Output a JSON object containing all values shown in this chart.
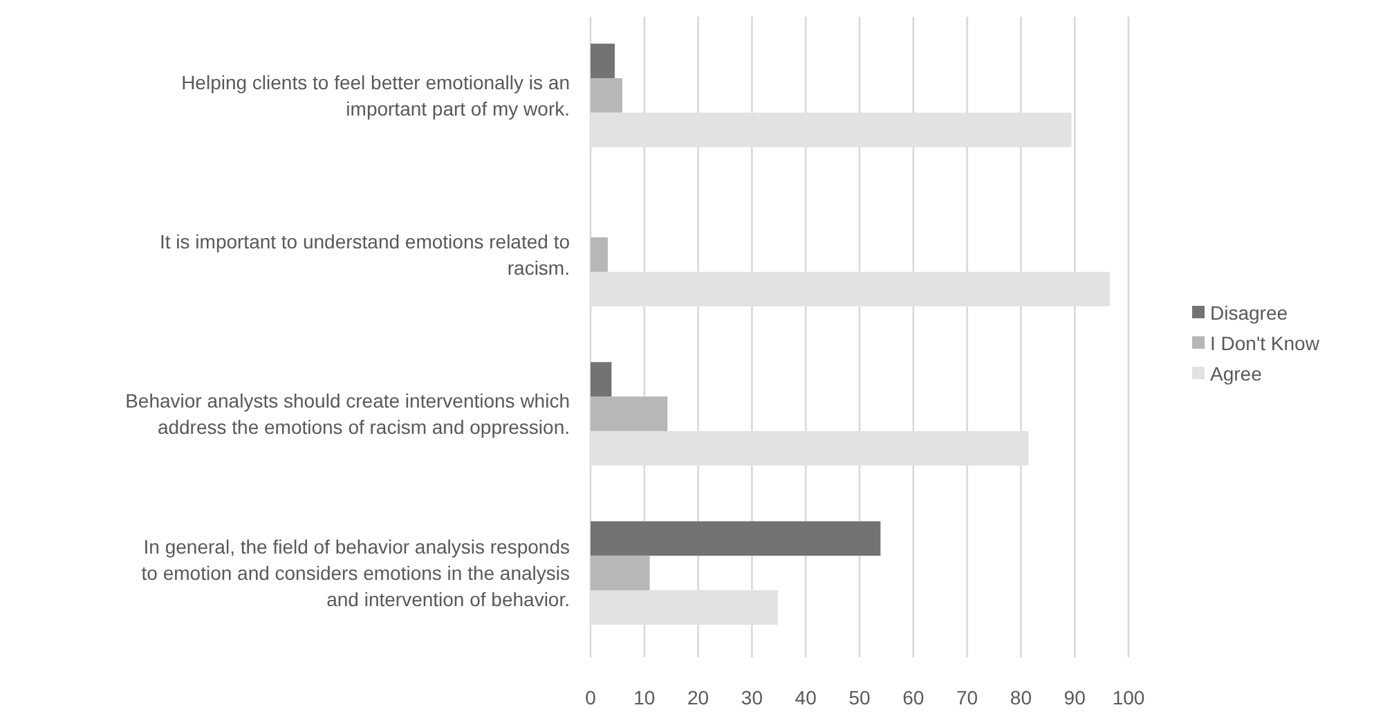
{
  "chart_data": {
    "type": "bar",
    "orientation": "horizontal",
    "categories": [
      "Helping clients to feel better emotionally is an important part of my work.",
      "It is important to understand emotions related to racism.",
      "Behavior analysts should create interventions which address the emotions of racism and oppression.",
      "In general, the field of behavior analysis responds to emotion and considers emotions in the analysis and intervention of behavior."
    ],
    "series": [
      {
        "name": "Disagree",
        "color": "#737373",
        "values": [
          4.5,
          0,
          3.9,
          53.9
        ]
      },
      {
        "name": "I Don't Know",
        "color": "#b7b7b7",
        "values": [
          5.9,
          3.2,
          14.3,
          11.0
        ]
      },
      {
        "name": "Agree",
        "color": "#e2e2e2",
        "values": [
          89.4,
          96.5,
          81.4,
          34.8
        ]
      }
    ],
    "xlim": [
      0,
      100
    ],
    "xticks": [
      0,
      10,
      20,
      30,
      40,
      50,
      60,
      70,
      80,
      90,
      100
    ],
    "grid": "x",
    "legend": "right"
  }
}
